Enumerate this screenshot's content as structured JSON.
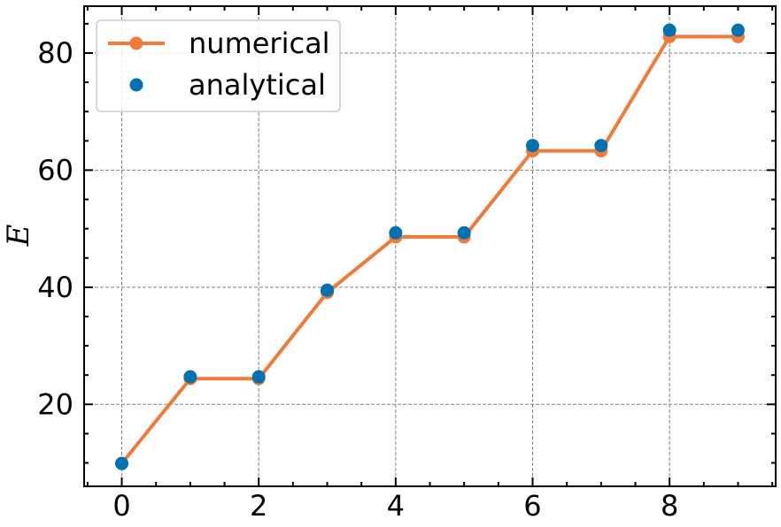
{
  "chart_data": {
    "type": "line",
    "xlabel": "",
    "ylabel": "E",
    "xlim": [
      -0.55,
      9.55
    ],
    "ylim": [
      6,
      88
    ],
    "xticks": [
      0,
      2,
      4,
      6,
      8
    ],
    "yticks": [
      20,
      40,
      60,
      80
    ],
    "x_minor_step": 0.5,
    "y_minor_step": 5,
    "grid": true,
    "legend_position": "top-left",
    "colors": {
      "numerical": "#f07a3a",
      "analytical": "#0072b2",
      "grid": "#808080",
      "axes": "#000000"
    },
    "x": [
      0,
      1,
      2,
      3,
      4,
      5,
      6,
      7,
      8,
      9
    ],
    "series": [
      {
        "name": "numerical",
        "style": "line-marker",
        "values": [
          9.9,
          24.4,
          24.4,
          39.1,
          48.6,
          48.6,
          63.3,
          63.3,
          82.8,
          82.8
        ]
      },
      {
        "name": "analytical",
        "style": "marker",
        "values": [
          9.9,
          24.7,
          24.7,
          39.5,
          49.3,
          49.3,
          64.2,
          64.2,
          83.9,
          83.9
        ]
      }
    ]
  }
}
